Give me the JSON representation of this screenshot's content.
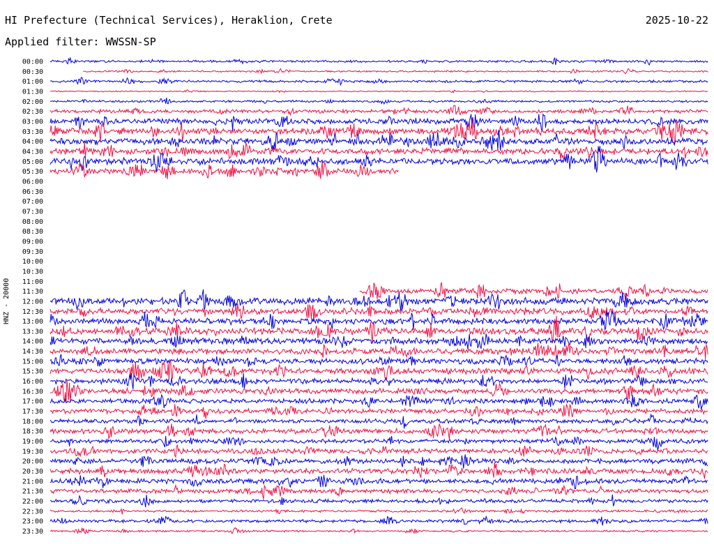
{
  "header": {
    "title": "HI Prefecture (Technical Services), Heraklion, Crete",
    "date": "2025-10-22",
    "filter": "Applied filter: WWSSN-SP",
    "channel": "HNZ - 20000"
  },
  "chart_data": {
    "type": "line",
    "title": "HI Prefecture (Technical Services), Heraklion, Crete",
    "subtitle": "Applied filter: WWSSN-SP",
    "ylabel": "HNZ - 20000",
    "xlabel": "",
    "colors": [
      "#0000dd",
      "#ee1144"
    ],
    "row_labels": [
      "00:00",
      "00:30",
      "01:00",
      "01:30",
      "02:00",
      "02:30",
      "03:00",
      "03:30",
      "04:00",
      "04:30",
      "05:00",
      "05:30",
      "06:00",
      "06:30",
      "07:00",
      "07:30",
      "08:00",
      "08:30",
      "09:00",
      "09:30",
      "10:00",
      "10:30",
      "11:00",
      "11:30",
      "12:00",
      "12:30",
      "13:00",
      "13:30",
      "14:00",
      "14:30",
      "15:00",
      "15:30",
      "16:00",
      "16:30",
      "17:00",
      "17:30",
      "18:00",
      "18:30",
      "19:00",
      "19:30",
      "20:00",
      "20:30",
      "21:00",
      "21:30",
      "22:00",
      "22:30",
      "23:00",
      "23:30"
    ],
    "traces": [
      {
        "label": "00:00",
        "start": 0,
        "end": 1,
        "noise": 2.0
      },
      {
        "label": "00:30",
        "start": 0.05,
        "end": 1,
        "noise": 1.4
      },
      {
        "label": "01:00",
        "start": 0,
        "end": 1,
        "noise": 2.0
      },
      {
        "label": "01:30",
        "start": 0,
        "end": 1,
        "noise": 1.0
      },
      {
        "label": "02:00",
        "start": 0,
        "end": 1,
        "noise": 1.8
      },
      {
        "label": "02:30",
        "start": 0,
        "end": 1,
        "noise": 3.0
      },
      {
        "label": "03:00",
        "start": 0,
        "end": 1,
        "noise": 4.5
      },
      {
        "label": "03:30",
        "start": 0,
        "end": 1,
        "noise": 5.5
      },
      {
        "label": "04:00",
        "start": 0,
        "end": 1,
        "noise": 5.5
      },
      {
        "label": "04:30",
        "start": 0,
        "end": 1,
        "noise": 5.0
      },
      {
        "label": "05:00",
        "start": 0,
        "end": 1,
        "noise": 5.5
      },
      {
        "label": "05:30",
        "start": 0,
        "end": 0.53,
        "noise": 4.5
      },
      {
        "label": "11:30",
        "start": 0.47,
        "end": 1,
        "noise": 4.5
      },
      {
        "label": "12:00",
        "start": 0,
        "end": 1,
        "noise": 5.5
      },
      {
        "label": "12:30",
        "start": 0,
        "end": 1,
        "noise": 5.0
      },
      {
        "label": "13:00",
        "start": 0,
        "end": 1,
        "noise": 5.0
      },
      {
        "label": "13:30",
        "start": 0,
        "end": 1,
        "noise": 5.5
      },
      {
        "label": "14:00",
        "start": 0,
        "end": 1,
        "noise": 5.0
      },
      {
        "label": "14:30",
        "start": 0,
        "end": 1,
        "noise": 5.0
      },
      {
        "label": "15:00",
        "start": 0,
        "end": 1,
        "noise": 4.5
      },
      {
        "label": "15:30",
        "start": 0,
        "end": 1,
        "noise": 5.0
      },
      {
        "label": "16:00",
        "start": 0,
        "end": 1,
        "noise": 4.5
      },
      {
        "label": "16:30",
        "start": 0,
        "end": 1,
        "noise": 4.5
      },
      {
        "label": "17:00",
        "start": 0,
        "end": 1,
        "noise": 4.0
      },
      {
        "label": "17:30",
        "start": 0,
        "end": 1,
        "noise": 4.0
      },
      {
        "label": "18:00",
        "start": 0,
        "end": 1,
        "noise": 3.5
      },
      {
        "label": "18:30",
        "start": 0,
        "end": 1,
        "noise": 4.0
      },
      {
        "label": "19:00",
        "start": 0,
        "end": 1,
        "noise": 3.5
      },
      {
        "label": "19:30",
        "start": 0,
        "end": 1,
        "noise": 4.0
      },
      {
        "label": "20:00",
        "start": 0,
        "end": 1,
        "noise": 4.0
      },
      {
        "label": "20:30",
        "start": 0,
        "end": 1,
        "noise": 4.5
      },
      {
        "label": "21:00",
        "start": 0,
        "end": 1,
        "noise": 4.0
      },
      {
        "label": "21:30",
        "start": 0,
        "end": 1,
        "noise": 3.5
      },
      {
        "label": "22:00",
        "start": 0,
        "end": 1,
        "noise": 3.0
      },
      {
        "label": "22:30",
        "start": 0,
        "end": 1,
        "noise": 2.0
      },
      {
        "label": "23:00",
        "start": 0,
        "end": 1,
        "noise": 2.5
      },
      {
        "label": "23:30",
        "start": 0,
        "end": 1,
        "noise": 1.6
      }
    ]
  }
}
